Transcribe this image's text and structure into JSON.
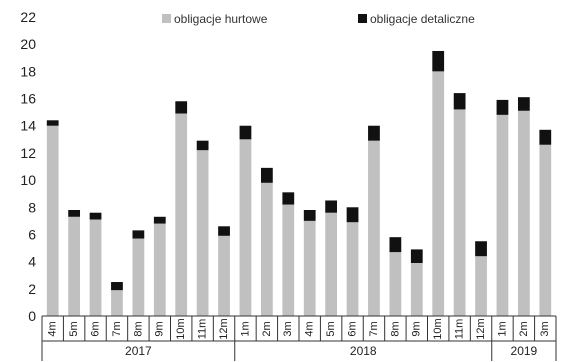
{
  "chart_data": {
    "type": "bar",
    "stacked": true,
    "title": "",
    "xlabel": "",
    "ylabel": "",
    "ylim": [
      0,
      22
    ],
    "yticks": [
      0,
      2,
      4,
      6,
      8,
      10,
      12,
      14,
      16,
      18,
      20,
      22
    ],
    "grid": false,
    "legend_position": "top",
    "categories": [
      "4m",
      "5m",
      "6m",
      "7m",
      "8m",
      "9m",
      "10m",
      "11m",
      "12m",
      "1m",
      "2m",
      "3m",
      "4m",
      "5m",
      "6m",
      "7m",
      "8m",
      "9m",
      "10m",
      "11m",
      "12m",
      "1m",
      "2m",
      "3m"
    ],
    "years": [
      {
        "label": "2017",
        "count": 9
      },
      {
        "label": "2018",
        "count": 12
      },
      {
        "label": "2019",
        "count": 3
      }
    ],
    "series": [
      {
        "name": "obligacje hurtowe",
        "color": "#c0c0c0",
        "values": [
          14.0,
          7.3,
          7.1,
          1.9,
          5.7,
          6.8,
          14.9,
          12.2,
          5.9,
          13.0,
          9.8,
          8.2,
          7.0,
          7.6,
          6.9,
          12.9,
          4.7,
          3.9,
          18.0,
          15.2,
          4.4,
          14.8,
          15.1,
          12.6
        ]
      },
      {
        "name": "obligacje detaliczne",
        "color": "#111111",
        "values": [
          0.4,
          0.5,
          0.5,
          0.6,
          0.6,
          0.5,
          0.9,
          0.7,
          0.7,
          1.0,
          1.1,
          0.9,
          0.8,
          0.9,
          1.1,
          1.1,
          1.1,
          1.0,
          1.5,
          1.2,
          1.1,
          1.1,
          1.0,
          1.1
        ]
      }
    ]
  }
}
